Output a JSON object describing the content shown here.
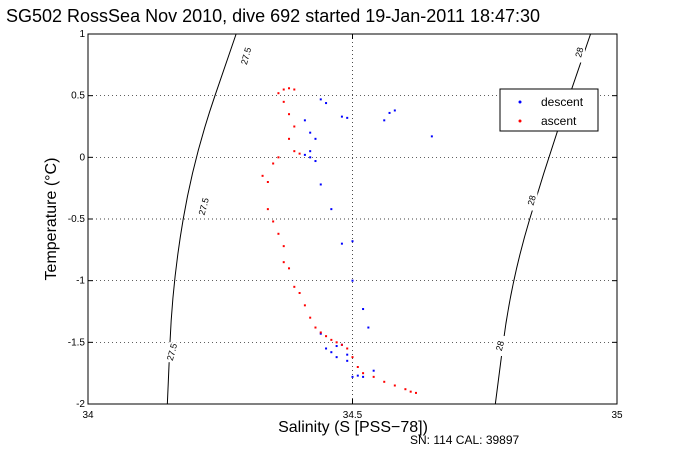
{
  "chart_data": {
    "type": "scatter",
    "title": "SG502 RossSea Nov 2010, dive 692 started 19-Jan-2011 18:47:30",
    "xlabel": "Salinity (S [PSS−78])",
    "ylabel": "Temperature (°C)",
    "xlim": [
      34,
      35
    ],
    "ylim": [
      -2,
      1
    ],
    "x_ticks": [
      34,
      34.5,
      35
    ],
    "x_tick_labels": [
      "34",
      "34.5",
      "35"
    ],
    "y_ticks": [
      -2,
      -1.5,
      -1,
      -0.5,
      0,
      0.5,
      1
    ],
    "y_tick_labels": [
      "-2",
      "-1.5",
      "-1",
      "-0.5",
      "0",
      "0.5",
      "1"
    ],
    "grid": "dotted",
    "legend_placement": "top-right",
    "footer": "SN: 114  CAL: 39897",
    "contours": [
      {
        "label": "27.5",
        "points": [
          [
            34.28,
            1.0
          ],
          [
            34.2,
            0.0
          ],
          [
            34.16,
            -1.0
          ],
          [
            34.15,
            -2.0
          ]
        ],
        "label_positions": [
          [
            34.3,
            0.82
          ],
          [
            34.22,
            -0.4
          ],
          [
            34.16,
            -1.58
          ]
        ]
      },
      {
        "label": "28",
        "points": [
          [
            34.95,
            1.0
          ],
          [
            34.87,
            0.0
          ],
          [
            34.8,
            -1.0
          ],
          [
            34.77,
            -2.0
          ]
        ],
        "label_positions": [
          [
            34.93,
            0.85
          ],
          [
            34.84,
            -0.35
          ],
          [
            34.78,
            -1.53
          ]
        ]
      }
    ],
    "series": [
      {
        "name": "descent",
        "color": "#0000ff",
        "points": [
          [
            34.44,
            0.47
          ],
          [
            34.45,
            0.44
          ],
          [
            34.48,
            0.33
          ],
          [
            34.49,
            0.32
          ],
          [
            34.57,
            0.36
          ],
          [
            34.58,
            0.38
          ],
          [
            34.56,
            0.3
          ],
          [
            34.65,
            0.17
          ],
          [
            34.41,
            0.3
          ],
          [
            34.42,
            0.2
          ],
          [
            34.43,
            0.15
          ],
          [
            34.42,
            0.05
          ],
          [
            34.42,
            0.0
          ],
          [
            34.43,
            -0.03
          ],
          [
            34.41,
            0.02
          ],
          [
            34.44,
            -0.22
          ],
          [
            34.46,
            -0.42
          ],
          [
            34.48,
            -0.7
          ],
          [
            34.5,
            -0.68
          ],
          [
            34.5,
            -1.0
          ],
          [
            34.52,
            -1.23
          ],
          [
            34.53,
            -1.38
          ],
          [
            34.44,
            -1.43
          ],
          [
            34.45,
            -1.55
          ],
          [
            34.46,
            -1.58
          ],
          [
            34.47,
            -1.62
          ],
          [
            34.48,
            -1.52
          ],
          [
            34.49,
            -1.6
          ],
          [
            34.5,
            -1.78
          ],
          [
            34.51,
            -1.77
          ],
          [
            34.52,
            -1.78
          ],
          [
            34.54,
            -1.73
          ],
          [
            34.49,
            -1.65
          ],
          [
            34.47,
            -1.53
          ]
        ]
      },
      {
        "name": "ascent",
        "color": "#ff0000",
        "points": [
          [
            34.36,
            0.52
          ],
          [
            34.37,
            0.55
          ],
          [
            34.38,
            0.56
          ],
          [
            34.39,
            0.55
          ],
          [
            34.37,
            0.45
          ],
          [
            34.38,
            0.35
          ],
          [
            34.39,
            0.25
          ],
          [
            34.38,
            0.15
          ],
          [
            34.39,
            0.05
          ],
          [
            34.4,
            0.03
          ],
          [
            34.36,
            0.0
          ],
          [
            34.35,
            -0.05
          ],
          [
            34.33,
            -0.15
          ],
          [
            34.34,
            -0.2
          ],
          [
            34.34,
            -0.42
          ],
          [
            34.35,
            -0.52
          ],
          [
            34.36,
            -0.62
          ],
          [
            34.37,
            -0.72
          ],
          [
            34.37,
            -0.85
          ],
          [
            34.38,
            -0.9
          ],
          [
            34.39,
            -1.05
          ],
          [
            34.4,
            -1.1
          ],
          [
            34.41,
            -1.2
          ],
          [
            34.42,
            -1.3
          ],
          [
            34.43,
            -1.38
          ],
          [
            34.44,
            -1.42
          ],
          [
            34.45,
            -1.45
          ],
          [
            34.46,
            -1.48
          ],
          [
            34.47,
            -1.5
          ],
          [
            34.48,
            -1.52
          ],
          [
            34.49,
            -1.55
          ],
          [
            34.5,
            -1.62
          ],
          [
            34.51,
            -1.7
          ],
          [
            34.52,
            -1.75
          ],
          [
            34.54,
            -1.78
          ],
          [
            34.56,
            -1.82
          ],
          [
            34.58,
            -1.85
          ],
          [
            34.6,
            -1.88
          ],
          [
            34.61,
            -1.9
          ],
          [
            34.62,
            -1.91
          ]
        ]
      }
    ]
  }
}
